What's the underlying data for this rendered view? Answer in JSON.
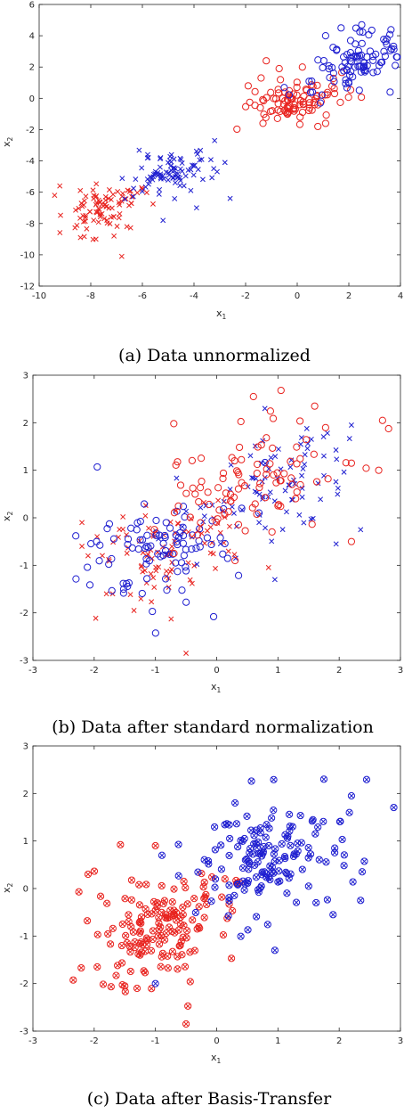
{
  "colors": {
    "red": "#e8231f",
    "blue": "#1f1fd0",
    "axis": "#262626"
  },
  "chart_data": [
    {
      "type": "scatter",
      "caption": "(a) Data unnormalized",
      "xlabel": "x",
      "xlabel_sub": "1",
      "ylabel": "x",
      "ylabel_sub": "2",
      "xlim": [
        -10,
        4
      ],
      "ylim": [
        -12,
        6
      ],
      "xticks": [
        "-10",
        "-8",
        "-6",
        "-4",
        "-2",
        "0",
        "2",
        "4"
      ],
      "yticks": [
        "-12",
        "-10",
        "-8",
        "-6",
        "-4",
        "-2",
        "0",
        "2",
        "4",
        "6"
      ],
      "grid": false,
      "series": [
        {
          "color": "red",
          "marker": "x",
          "center": [
            -7.6,
            -7.0
          ],
          "spread": [
            0.75,
            0.8
          ],
          "corr": 0.45,
          "n": 90,
          "points": [
            [
              -9.4,
              -6.2
            ],
            [
              -9.2,
              -5.6
            ],
            [
              -8.4,
              -8.9
            ],
            [
              -7.8,
              -9.0
            ],
            [
              -6.8,
              -10.1
            ],
            [
              -6.6,
              -8.2
            ],
            [
              -7.1,
              -8.8
            ]
          ]
        },
        {
          "color": "blue",
          "marker": "x",
          "center": [
            -5.0,
            -4.8
          ],
          "spread": [
            0.85,
            0.7
          ],
          "corr": 0.45,
          "n": 90,
          "points": [
            [
              -3.2,
              -2.7
            ],
            [
              -2.8,
              -4.1
            ],
            [
              -2.6,
              -6.4
            ],
            [
              -3.9,
              -7.0
            ],
            [
              -5.2,
              -7.8
            ]
          ]
        },
        {
          "color": "red",
          "marker": "o",
          "center": [
            0.0,
            -0.1
          ],
          "spread": [
            0.9,
            0.7
          ],
          "corr": 0.4,
          "n": 95,
          "points": [
            [
              -1.9,
              0.8
            ],
            [
              -1.4,
              1.3
            ],
            [
              -0.7,
              1.9
            ],
            [
              -1.2,
              2.4
            ],
            [
              0.2,
              2.0
            ],
            [
              1.1,
              -1.6
            ],
            [
              0.8,
              -1.8
            ]
          ]
        },
        {
          "color": "blue",
          "marker": "o",
          "center": [
            2.1,
            2.1
          ],
          "spread": [
            0.85,
            1.0
          ],
          "corr": 0.45,
          "n": 95,
          "points": [
            [
              2.5,
              4.7
            ],
            [
              1.7,
              4.5
            ],
            [
              3.8,
              2.1
            ],
            [
              3.6,
              0.4
            ],
            [
              0.9,
              -0.3
            ],
            [
              1.1,
              4.0
            ]
          ]
        }
      ]
    },
    {
      "type": "scatter",
      "caption": "(b) Data after standard normalization",
      "xlabel": "x",
      "xlabel_sub": "1",
      "ylabel": "x",
      "ylabel_sub": "2",
      "xlim": [
        -3,
        3
      ],
      "ylim": [
        -3,
        3
      ],
      "xticks": [
        "-3",
        "-2",
        "-1",
        "0",
        "1",
        "2",
        "3"
      ],
      "yticks": [
        "-3",
        "-2",
        "-1",
        "0",
        "1",
        "2",
        "3"
      ],
      "grid": false,
      "series": [
        {
          "color": "red",
          "marker": "x",
          "center": [
            -0.8,
            -0.75
          ],
          "spread": [
            0.6,
            0.6
          ],
          "corr": 0.35,
          "n": 90,
          "points": [
            [
              -2.2,
              -0.1
            ],
            [
              -2.1,
              -0.8
            ],
            [
              -2.2,
              -0.6
            ],
            [
              -0.5,
              -2.85
            ],
            [
              -1.35,
              -1.95
            ],
            [
              -1.8,
              -1.6
            ]
          ]
        },
        {
          "color": "blue",
          "marker": "x",
          "center": [
            0.9,
            0.7
          ],
          "spread": [
            0.65,
            0.6
          ],
          "corr": 0.35,
          "n": 90,
          "points": [
            [
              2.2,
              1.95
            ],
            [
              2.35,
              -0.25
            ],
            [
              1.95,
              -0.55
            ],
            [
              1.75,
              1.3
            ],
            [
              0.95,
              -1.3
            ]
          ]
        },
        {
          "color": "blue",
          "marker": "o",
          "center": [
            -1.0,
            -0.6
          ],
          "spread": [
            0.65,
            0.6
          ],
          "corr": 0.35,
          "n": 95,
          "points": [
            [
              -1.95,
              1.07
            ],
            [
              -2.3,
              -0.38
            ],
            [
              -0.05,
              -2.08
            ],
            [
              -1.05,
              -1.97
            ],
            [
              -0.55,
              -0.2
            ]
          ]
        },
        {
          "color": "red",
          "marker": "o",
          "center": [
            0.6,
            0.8
          ],
          "spread": [
            0.75,
            0.6
          ],
          "corr": 0.35,
          "n": 95,
          "points": [
            [
              1.05,
              2.68
            ],
            [
              1.6,
              2.35
            ],
            [
              0.6,
              2.55
            ],
            [
              -0.7,
              1.98
            ],
            [
              2.2,
              1.15
            ],
            [
              2.2,
              -0.5
            ],
            [
              0.3,
              -0.9
            ]
          ]
        }
      ]
    },
    {
      "type": "scatter",
      "caption": "(c) Data after Basis-Transfer",
      "xlabel": "x",
      "xlabel_sub": "1",
      "ylabel": "x",
      "ylabel_sub": "2",
      "xlim": [
        -3,
        3
      ],
      "ylim": [
        -3,
        3
      ],
      "xticks": [
        "-3",
        "-2",
        "-1",
        "0",
        "1",
        "2",
        "3"
      ],
      "yticks": [
        "-3",
        "-2",
        "-1",
        "0",
        "1",
        "2",
        "3"
      ],
      "grid": false,
      "series": [
        {
          "color": "red",
          "marker": "ox",
          "center": [
            -0.85,
            -0.8
          ],
          "spread": [
            0.6,
            0.6
          ],
          "corr": 0.35,
          "n": 150,
          "points": [
            [
              -2.25,
              -0.07
            ],
            [
              -2.1,
              0.3
            ],
            [
              -0.5,
              -2.85
            ],
            [
              -1.5,
              -2.05
            ],
            [
              -1.95,
              -1.65
            ],
            [
              -1.3,
              -2.1
            ],
            [
              -1.0,
              0.9
            ]
          ]
        },
        {
          "color": "blue",
          "marker": "ox",
          "center": [
            0.85,
            0.65
          ],
          "spread": [
            0.65,
            0.6
          ],
          "corr": 0.35,
          "n": 150,
          "points": [
            [
              1.75,
              2.3
            ],
            [
              2.2,
              1.95
            ],
            [
              2.35,
              -0.25
            ],
            [
              1.9,
              -0.55
            ],
            [
              0.95,
              -1.3
            ],
            [
              -1.0,
              -2.0
            ],
            [
              0.3,
              1.8
            ]
          ]
        }
      ]
    }
  ]
}
